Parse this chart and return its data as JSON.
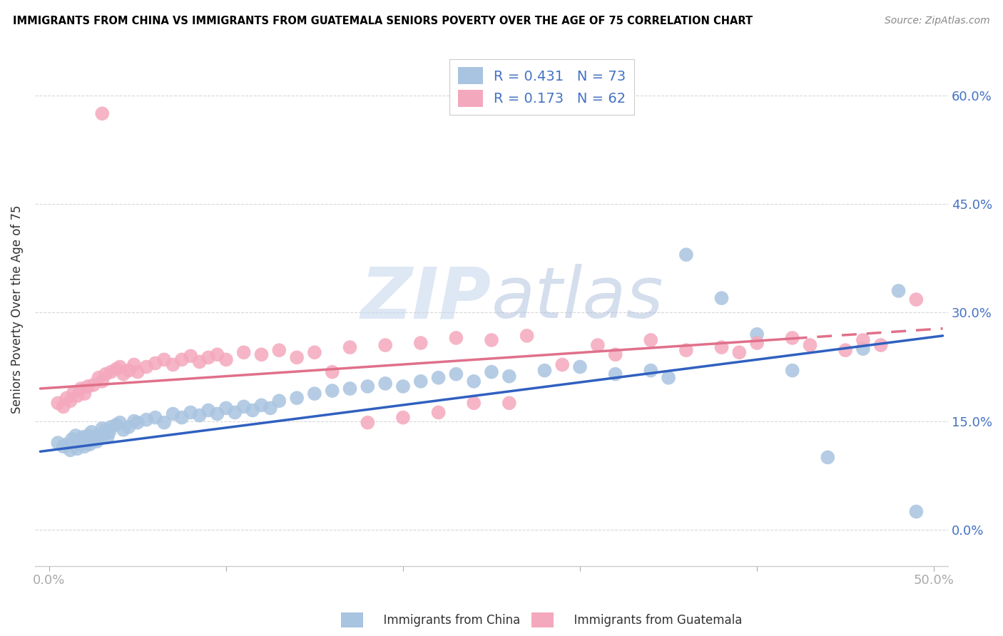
{
  "title": "IMMIGRANTS FROM CHINA VS IMMIGRANTS FROM GUATEMALA SENIORS POVERTY OVER THE AGE OF 75 CORRELATION CHART",
  "source": "Source: ZipAtlas.com",
  "ylabel": "Seniors Poverty Over the Age of 75",
  "xlim": [
    0.0,
    0.5
  ],
  "ylim": [
    -0.05,
    0.65
  ],
  "yticks": [
    0.0,
    0.15,
    0.3,
    0.45,
    0.6
  ],
  "ytick_labels_right": [
    "0.0%",
    "15.0%",
    "30.0%",
    "45.0%",
    "60.0%"
  ],
  "xticks": [
    0.0,
    0.1,
    0.2,
    0.3,
    0.4,
    0.5
  ],
  "xtick_labels": [
    "0.0%",
    "",
    "",
    "",
    "",
    "50.0%"
  ],
  "color_china": "#a8c4e0",
  "color_guatemala": "#f4a8be",
  "color_line_china": "#3060c0",
  "color_line_guatemala": "#e0708a",
  "R_china": 0.431,
  "N_china": 73,
  "R_guatemala": 0.173,
  "N_guatemala": 62,
  "legend_label_china": "Immigrants from China",
  "legend_label_guatemala": "Immigrants from Guatemala",
  "china_line": [
    0.108,
    0.268
  ],
  "guatemala_line": [
    0.195,
    0.278
  ],
  "china_x": [
    0.005,
    0.008,
    0.01,
    0.012,
    0.013,
    0.015,
    0.016,
    0.017,
    0.018,
    0.019,
    0.02,
    0.021,
    0.022,
    0.023,
    0.024,
    0.025,
    0.026,
    0.027,
    0.028,
    0.03,
    0.031,
    0.032,
    0.033,
    0.034,
    0.035,
    0.038,
    0.04,
    0.042,
    0.045,
    0.048,
    0.05,
    0.055,
    0.06,
    0.065,
    0.07,
    0.075,
    0.08,
    0.085,
    0.09,
    0.095,
    0.1,
    0.105,
    0.11,
    0.115,
    0.12,
    0.125,
    0.13,
    0.14,
    0.15,
    0.16,
    0.17,
    0.18,
    0.19,
    0.2,
    0.21,
    0.22,
    0.23,
    0.24,
    0.25,
    0.26,
    0.28,
    0.3,
    0.32,
    0.34,
    0.35,
    0.36,
    0.38,
    0.4,
    0.42,
    0.44,
    0.46,
    0.48,
    0.49
  ],
  "china_y": [
    0.12,
    0.115,
    0.118,
    0.11,
    0.125,
    0.13,
    0.112,
    0.118,
    0.125,
    0.128,
    0.115,
    0.12,
    0.13,
    0.118,
    0.135,
    0.125,
    0.128,
    0.122,
    0.13,
    0.14,
    0.132,
    0.138,
    0.128,
    0.135,
    0.142,
    0.145,
    0.148,
    0.138,
    0.142,
    0.15,
    0.148,
    0.152,
    0.155,
    0.148,
    0.16,
    0.155,
    0.162,
    0.158,
    0.165,
    0.16,
    0.168,
    0.162,
    0.17,
    0.165,
    0.172,
    0.168,
    0.178,
    0.182,
    0.188,
    0.192,
    0.195,
    0.198,
    0.202,
    0.198,
    0.205,
    0.21,
    0.215,
    0.205,
    0.218,
    0.212,
    0.22,
    0.225,
    0.215,
    0.22,
    0.21,
    0.38,
    0.32,
    0.27,
    0.22,
    0.1,
    0.25,
    0.33,
    0.025
  ],
  "guatemala_x": [
    0.005,
    0.008,
    0.01,
    0.012,
    0.014,
    0.016,
    0.018,
    0.02,
    0.022,
    0.025,
    0.028,
    0.03,
    0.032,
    0.035,
    0.038,
    0.04,
    0.042,
    0.045,
    0.048,
    0.05,
    0.055,
    0.06,
    0.065,
    0.07,
    0.075,
    0.08,
    0.085,
    0.09,
    0.095,
    0.1,
    0.11,
    0.12,
    0.13,
    0.14,
    0.15,
    0.16,
    0.17,
    0.18,
    0.19,
    0.2,
    0.21,
    0.22,
    0.23,
    0.24,
    0.25,
    0.26,
    0.27,
    0.29,
    0.31,
    0.32,
    0.34,
    0.36,
    0.38,
    0.39,
    0.4,
    0.42,
    0.43,
    0.45,
    0.46,
    0.47,
    0.49,
    0.03
  ],
  "guatemala_y": [
    0.175,
    0.17,
    0.182,
    0.178,
    0.19,
    0.185,
    0.195,
    0.188,
    0.198,
    0.2,
    0.21,
    0.205,
    0.215,
    0.218,
    0.222,
    0.225,
    0.215,
    0.22,
    0.228,
    0.218,
    0.225,
    0.23,
    0.235,
    0.228,
    0.235,
    0.24,
    0.232,
    0.238,
    0.242,
    0.235,
    0.245,
    0.242,
    0.248,
    0.238,
    0.245,
    0.218,
    0.252,
    0.148,
    0.255,
    0.155,
    0.258,
    0.162,
    0.265,
    0.175,
    0.262,
    0.175,
    0.268,
    0.228,
    0.255,
    0.242,
    0.262,
    0.248,
    0.252,
    0.245,
    0.258,
    0.265,
    0.255,
    0.248,
    0.262,
    0.255,
    0.318,
    0.575
  ]
}
